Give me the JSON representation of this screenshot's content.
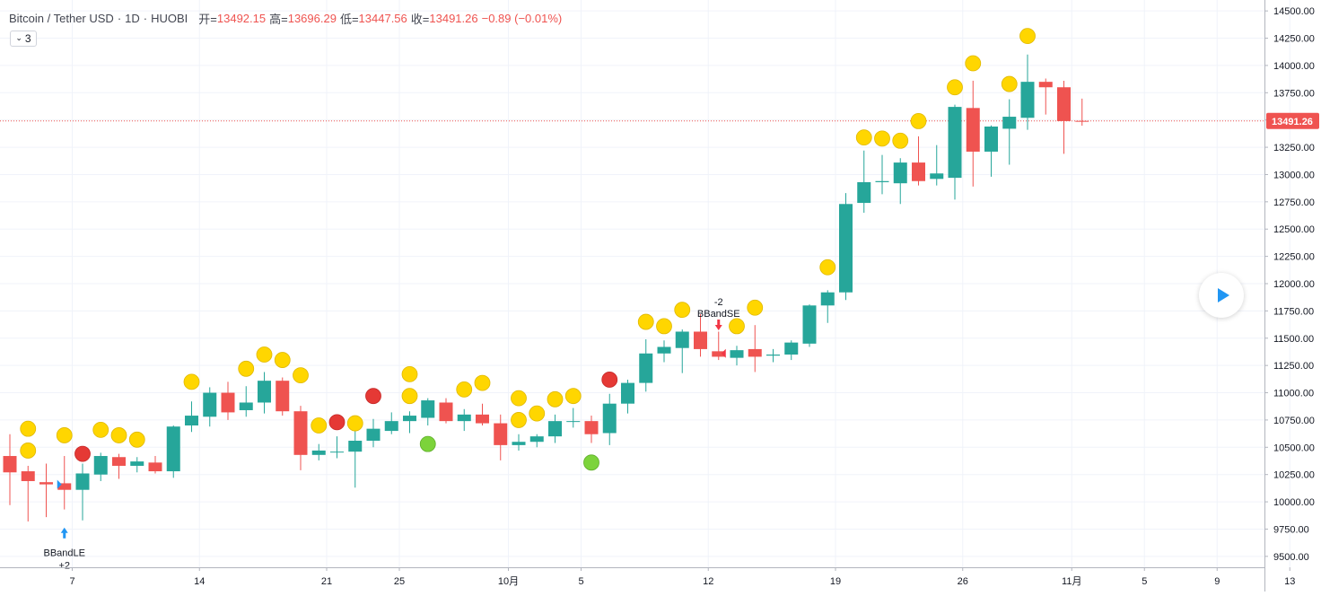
{
  "legend": {
    "symbol": "Bitcoin / Tether USD",
    "interval": "1D",
    "exchange": "HUOBI",
    "open_label": "开=",
    "open_value": "13492.15",
    "high_label": "高=",
    "high_value": "13696.29",
    "low_label": "低=",
    "low_value": "13447.56",
    "close_label": "收=",
    "close_value": "13491.26",
    "change": "−0.89 (−0.01%)"
  },
  "indicator_toggle": {
    "count": "3"
  },
  "last_price_label": "13491.26",
  "colors": {
    "up": "#26a69a",
    "down": "#ef5350",
    "signal_yellow": "#ffd600",
    "signal_red": "#e53935",
    "signal_green": "#7cd33b",
    "buy_arrow": "#2196f3",
    "sell_arrow": "#f23645",
    "price_line": "#ef5350"
  },
  "chart_data": {
    "type": "candlestick",
    "ylim": [
      9400,
      14600
    ],
    "y_ticks": [
      9500,
      9750,
      10000,
      10250,
      10500,
      10750,
      11000,
      11250,
      11500,
      11750,
      12000,
      12250,
      12500,
      12750,
      13000,
      13250,
      13500,
      13750,
      14000,
      14250,
      14500
    ],
    "y_tick_labels": [
      "9500.00",
      "9750.00",
      "10000.00",
      "10250.00",
      "10500.00",
      "10750.00",
      "11000.00",
      "11250.00",
      "11500.00",
      "11750.00",
      "12000.00",
      "12250.00",
      "12500.00",
      "12750.00",
      "13000.00",
      "13250.00",
      "13500.00",
      "13750.00",
      "14000.00",
      "14250.00",
      "14500.00"
    ],
    "x_ticks": [
      {
        "index": 2,
        "label": "7"
      },
      {
        "index": 9,
        "label": "14"
      },
      {
        "index": 16,
        "label": "21"
      },
      {
        "index": 20,
        "label": "25"
      },
      {
        "index": 26,
        "label": "10月"
      },
      {
        "index": 30,
        "label": "5"
      },
      {
        "index": 37,
        "label": "12"
      },
      {
        "index": 44,
        "label": "19"
      },
      {
        "index": 51,
        "label": "26"
      },
      {
        "index": 57,
        "label": "11月"
      },
      {
        "index": 61,
        "label": "5"
      },
      {
        "index": 65,
        "label": "9"
      },
      {
        "index": 69,
        "label": "13"
      }
    ],
    "candles": [
      {
        "o": 10420,
        "h": 10620,
        "l": 9970,
        "c": 10270
      },
      {
        "o": 10280,
        "h": 10330,
        "l": 9820,
        "c": 10190
      },
      {
        "o": 10180,
        "h": 10350,
        "l": 9860,
        "c": 10160
      },
      {
        "o": 10170,
        "h": 10420,
        "l": 9930,
        "c": 10110
      },
      {
        "o": 10110,
        "h": 10350,
        "l": 9830,
        "c": 10260
      },
      {
        "o": 10250,
        "h": 10450,
        "l": 10190,
        "c": 10420
      },
      {
        "o": 10410,
        "h": 10440,
        "l": 10210,
        "c": 10330
      },
      {
        "o": 10330,
        "h": 10410,
        "l": 10270,
        "c": 10370
      },
      {
        "o": 10360,
        "h": 10420,
        "l": 10260,
        "c": 10280
      },
      {
        "o": 10280,
        "h": 10700,
        "l": 10220,
        "c": 10690
      },
      {
        "o": 10700,
        "h": 10920,
        "l": 10640,
        "c": 10790
      },
      {
        "o": 10780,
        "h": 11050,
        "l": 10690,
        "c": 11000
      },
      {
        "o": 11000,
        "h": 11100,
        "l": 10750,
        "c": 10820
      },
      {
        "o": 10840,
        "h": 11060,
        "l": 10780,
        "c": 10910
      },
      {
        "o": 10910,
        "h": 11190,
        "l": 10810,
        "c": 11110
      },
      {
        "o": 11110,
        "h": 11140,
        "l": 10790,
        "c": 10830
      },
      {
        "o": 10830,
        "h": 10880,
        "l": 10290,
        "c": 10430
      },
      {
        "o": 10430,
        "h": 10530,
        "l": 10380,
        "c": 10470
      },
      {
        "o": 10460,
        "h": 10600,
        "l": 10400,
        "c": 10460
      },
      {
        "o": 10460,
        "h": 10650,
        "l": 10130,
        "c": 10560
      },
      {
        "o": 10560,
        "h": 10760,
        "l": 10500,
        "c": 10670
      },
      {
        "o": 10650,
        "h": 10820,
        "l": 10620,
        "c": 10740
      },
      {
        "o": 10740,
        "h": 10830,
        "l": 10630,
        "c": 10790
      },
      {
        "o": 10770,
        "h": 10950,
        "l": 10700,
        "c": 10930
      },
      {
        "o": 10910,
        "h": 10950,
        "l": 10720,
        "c": 10740
      },
      {
        "o": 10740,
        "h": 10850,
        "l": 10650,
        "c": 10800
      },
      {
        "o": 10800,
        "h": 10900,
        "l": 10700,
        "c": 10720
      },
      {
        "o": 10720,
        "h": 10800,
        "l": 10380,
        "c": 10520
      },
      {
        "o": 10520,
        "h": 10620,
        "l": 10470,
        "c": 10550
      },
      {
        "o": 10550,
        "h": 10620,
        "l": 10500,
        "c": 10600
      },
      {
        "o": 10600,
        "h": 10800,
        "l": 10540,
        "c": 10740
      },
      {
        "o": 10740,
        "h": 10860,
        "l": 10680,
        "c": 10740
      },
      {
        "o": 10740,
        "h": 10790,
        "l": 10540,
        "c": 10620
      },
      {
        "o": 10630,
        "h": 10990,
        "l": 10520,
        "c": 10900
      },
      {
        "o": 10900,
        "h": 11120,
        "l": 10810,
        "c": 11090
      },
      {
        "o": 11090,
        "h": 11490,
        "l": 11010,
        "c": 11360
      },
      {
        "o": 11360,
        "h": 11480,
        "l": 11280,
        "c": 11420
      },
      {
        "o": 11410,
        "h": 11580,
        "l": 11180,
        "c": 11560
      },
      {
        "o": 11560,
        "h": 11720,
        "l": 11330,
        "c": 11400
      },
      {
        "o": 11380,
        "h": 11560,
        "l": 11300,
        "c": 11330
      },
      {
        "o": 11320,
        "h": 11430,
        "l": 11250,
        "c": 11390
      },
      {
        "o": 11400,
        "h": 11620,
        "l": 11190,
        "c": 11330
      },
      {
        "o": 11340,
        "h": 11400,
        "l": 11280,
        "c": 11350
      },
      {
        "o": 11350,
        "h": 11480,
        "l": 11300,
        "c": 11460
      },
      {
        "o": 11450,
        "h": 11810,
        "l": 11420,
        "c": 11800
      },
      {
        "o": 11800,
        "h": 11940,
        "l": 11640,
        "c": 11920
      },
      {
        "o": 11920,
        "h": 12830,
        "l": 11850,
        "c": 12730
      },
      {
        "o": 12740,
        "h": 13220,
        "l": 12650,
        "c": 12930
      },
      {
        "o": 12930,
        "h": 13180,
        "l": 12820,
        "c": 12940
      },
      {
        "o": 12920,
        "h": 13150,
        "l": 12730,
        "c": 13110
      },
      {
        "o": 13110,
        "h": 13350,
        "l": 12900,
        "c": 12940
      },
      {
        "o": 12960,
        "h": 13270,
        "l": 12900,
        "c": 13010
      },
      {
        "o": 12970,
        "h": 13640,
        "l": 12770,
        "c": 13620
      },
      {
        "o": 13610,
        "h": 13860,
        "l": 12890,
        "c": 13210
      },
      {
        "o": 13210,
        "h": 13450,
        "l": 12980,
        "c": 13440
      },
      {
        "o": 13420,
        "h": 13690,
        "l": 13090,
        "c": 13530
      },
      {
        "o": 13520,
        "h": 14100,
        "l": 13410,
        "c": 13850
      },
      {
        "o": 13850,
        "h": 13880,
        "l": 13550,
        "c": 13800
      },
      {
        "o": 13800,
        "h": 13860,
        "l": 13190,
        "c": 13490
      },
      {
        "o": 13492,
        "h": 13696,
        "l": 13448,
        "c": 13491
      }
    ],
    "signal_dots": [
      {
        "index": 1,
        "price": 10470,
        "kind": "yellow"
      },
      {
        "index": 1,
        "price": 10670,
        "kind": "yellow"
      },
      {
        "index": 3,
        "price": 10610,
        "kind": "yellow"
      },
      {
        "index": 4,
        "price": 10440,
        "kind": "red"
      },
      {
        "index": 5,
        "price": 10660,
        "kind": "yellow"
      },
      {
        "index": 6,
        "price": 10610,
        "kind": "yellow"
      },
      {
        "index": 7,
        "price": 10570,
        "kind": "yellow"
      },
      {
        "index": 10,
        "price": 11100,
        "kind": "yellow"
      },
      {
        "index": 13,
        "price": 11220,
        "kind": "yellow"
      },
      {
        "index": 14,
        "price": 11350,
        "kind": "yellow"
      },
      {
        "index": 15,
        "price": 11300,
        "kind": "yellow"
      },
      {
        "index": 16,
        "price": 11160,
        "kind": "yellow"
      },
      {
        "index": 17,
        "price": 10700,
        "kind": "yellow"
      },
      {
        "index": 18,
        "price": 10730,
        "kind": "red"
      },
      {
        "index": 19,
        "price": 10720,
        "kind": "yellow"
      },
      {
        "index": 20,
        "price": 10970,
        "kind": "red"
      },
      {
        "index": 22,
        "price": 11170,
        "kind": "yellow"
      },
      {
        "index": 22,
        "price": 10970,
        "kind": "yellow"
      },
      {
        "index": 23,
        "price": 10530,
        "kind": "green"
      },
      {
        "index": 25,
        "price": 11030,
        "kind": "yellow"
      },
      {
        "index": 26,
        "price": 11090,
        "kind": "yellow"
      },
      {
        "index": 28,
        "price": 10950,
        "kind": "yellow"
      },
      {
        "index": 28,
        "price": 10750,
        "kind": "yellow"
      },
      {
        "index": 29,
        "price": 10810,
        "kind": "yellow"
      },
      {
        "index": 30,
        "price": 10940,
        "kind": "yellow"
      },
      {
        "index": 31,
        "price": 10970,
        "kind": "yellow"
      },
      {
        "index": 32,
        "price": 10360,
        "kind": "green"
      },
      {
        "index": 33,
        "price": 11120,
        "kind": "red"
      },
      {
        "index": 35,
        "price": 11650,
        "kind": "yellow"
      },
      {
        "index": 36,
        "price": 11610,
        "kind": "yellow"
      },
      {
        "index": 37,
        "price": 11760,
        "kind": "yellow"
      },
      {
        "index": 40,
        "price": 11610,
        "kind": "yellow"
      },
      {
        "index": 41,
        "price": 11780,
        "kind": "yellow"
      },
      {
        "index": 45,
        "price": 12150,
        "kind": "yellow"
      },
      {
        "index": 47,
        "price": 13340,
        "kind": "yellow"
      },
      {
        "index": 48,
        "price": 13330,
        "kind": "yellow"
      },
      {
        "index": 49,
        "price": 13310,
        "kind": "yellow"
      },
      {
        "index": 50,
        "price": 13490,
        "kind": "yellow"
      },
      {
        "index": 52,
        "price": 13800,
        "kind": "yellow"
      },
      {
        "index": 53,
        "price": 14020,
        "kind": "yellow"
      },
      {
        "index": 55,
        "price": 13830,
        "kind": "yellow"
      },
      {
        "index": 56,
        "price": 14270,
        "kind": "yellow"
      }
    ],
    "trades": [
      {
        "index": 3,
        "side": "buy",
        "label": "BBandLE",
        "qty": "+2",
        "price": 9830
      },
      {
        "index": 39,
        "side": "sell",
        "label": "BBandSE",
        "qty": "-2",
        "price": 11720
      }
    ],
    "last_price": 13491.26
  }
}
